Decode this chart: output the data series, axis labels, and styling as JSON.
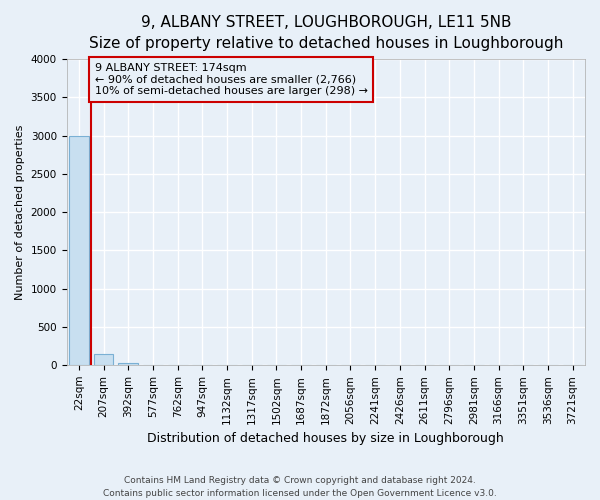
{
  "title": "9, ALBANY STREET, LOUGHBOROUGH, LE11 5NB",
  "subtitle": "Size of property relative to detached houses in Loughborough",
  "xlabel": "Distribution of detached houses by size in Loughborough",
  "ylabel": "Number of detached properties",
  "footnote": "Contains HM Land Registry data © Crown copyright and database right 2024.\nContains public sector information licensed under the Open Government Licence v3.0.",
  "categories": [
    "22sqm",
    "207sqm",
    "392sqm",
    "577sqm",
    "762sqm",
    "947sqm",
    "1132sqm",
    "1317sqm",
    "1502sqm",
    "1687sqm",
    "1872sqm",
    "2056sqm",
    "2241sqm",
    "2426sqm",
    "2611sqm",
    "2796sqm",
    "2981sqm",
    "3166sqm",
    "3351sqm",
    "3536sqm",
    "3721sqm"
  ],
  "bar_heights": [
    3000,
    150,
    28,
    5,
    3,
    2,
    2,
    1,
    1,
    2,
    1,
    1,
    1,
    1,
    1,
    1,
    1,
    1,
    1,
    1,
    1
  ],
  "property_line_x": 0.5,
  "bar_color": "#c8dff0",
  "bar_edge_color": "#7ab0d4",
  "property_line_color": "#cc0000",
  "annotation_box_edge_color": "#cc0000",
  "annotation_text_line1": "9 ALBANY STREET: 174sqm",
  "annotation_text_line2": "← 90% of detached houses are smaller (2,766)",
  "annotation_text_line3": "10% of semi-detached houses are larger (298) →",
  "ylim": [
    0,
    4000
  ],
  "yticks": [
    0,
    500,
    1000,
    1500,
    2000,
    2500,
    3000,
    3500,
    4000
  ],
  "bg_color": "#e8f0f8",
  "grid_color": "#ffffff",
  "title_fontsize": 11,
  "subtitle_fontsize": 9,
  "tick_fontsize": 7.5,
  "ylabel_fontsize": 8,
  "xlabel_fontsize": 9,
  "annotation_fontsize": 8,
  "footnote_fontsize": 6.5
}
